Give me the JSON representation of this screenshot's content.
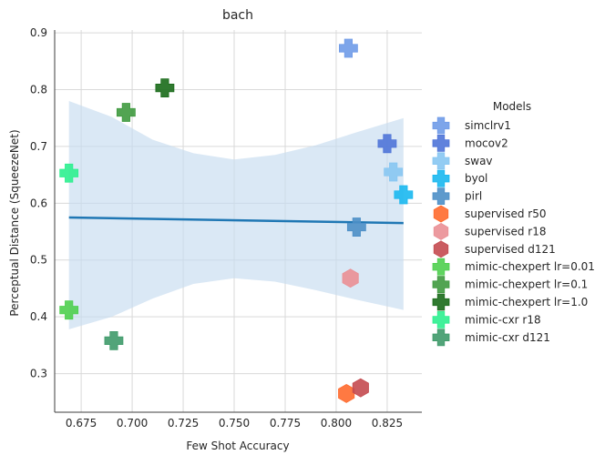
{
  "chart_data": {
    "type": "scatter",
    "title": "bach",
    "xlabel": "Few Shot Accuracy",
    "ylabel": "Perceptual Distance (SqueezeNet)",
    "xlim": [
      0.662,
      0.842
    ],
    "ylim": [
      0.232,
      0.905
    ],
    "xticks": [
      "0.675",
      "0.700",
      "0.725",
      "0.750",
      "0.775",
      "0.800",
      "0.825"
    ],
    "yticks": [
      "0.3",
      "0.4",
      "0.5",
      "0.6",
      "0.7",
      "0.8",
      "0.9"
    ],
    "grid": true,
    "legend": {
      "title": "Models",
      "placement": "right"
    },
    "regression": {
      "color": "#1f77b4",
      "band_color": "#c6dbef",
      "line": [
        [
          0.669,
          0.575
        ],
        [
          0.833,
          0.565
        ]
      ],
      "band_upper": [
        [
          0.669,
          0.78
        ],
        [
          0.69,
          0.752
        ],
        [
          0.71,
          0.712
        ],
        [
          0.73,
          0.688
        ],
        [
          0.75,
          0.677
        ],
        [
          0.77,
          0.685
        ],
        [
          0.79,
          0.702
        ],
        [
          0.81,
          0.725
        ],
        [
          0.833,
          0.75
        ]
      ],
      "band_lower": [
        [
          0.669,
          0.378
        ],
        [
          0.69,
          0.4
        ],
        [
          0.71,
          0.432
        ],
        [
          0.73,
          0.458
        ],
        [
          0.75,
          0.468
        ],
        [
          0.77,
          0.462
        ],
        [
          0.79,
          0.447
        ],
        [
          0.81,
          0.43
        ],
        [
          0.833,
          0.412
        ]
      ]
    },
    "series": [
      {
        "name": "simclrv1",
        "marker": "plus",
        "color": "#6f9be8",
        "points": [
          [
            0.806,
            0.873
          ]
        ]
      },
      {
        "name": "mocov2",
        "marker": "plus",
        "color": "#4f74d8",
        "points": [
          [
            0.825,
            0.705
          ]
        ]
      },
      {
        "name": "swav",
        "marker": "plus",
        "color": "#87c6f2",
        "points": [
          [
            0.828,
            0.655
          ]
        ]
      },
      {
        "name": "byol",
        "marker": "plus",
        "color": "#1ab8f0",
        "points": [
          [
            0.833,
            0.615
          ]
        ]
      },
      {
        "name": "pirl",
        "marker": "plus",
        "color": "#4d8fc7",
        "points": [
          [
            0.81,
            0.558
          ]
        ]
      },
      {
        "name": "supervised r50",
        "marker": "hexagon",
        "color": "#ff6a2e",
        "points": [
          [
            0.805,
            0.265
          ]
        ]
      },
      {
        "name": "supervised r18",
        "marker": "hexagon",
        "color": "#ea8f95",
        "points": [
          [
            0.807,
            0.468
          ]
        ]
      },
      {
        "name": "supervised d121",
        "marker": "hexagon",
        "color": "#c44a50",
        "points": [
          [
            0.812,
            0.275
          ]
        ]
      },
      {
        "name": "mimic-chexpert lr=0.01",
        "marker": "plus",
        "color": "#4fcf4f",
        "points": [
          [
            0.669,
            0.412
          ]
        ]
      },
      {
        "name": "mimic-chexpert lr=0.1",
        "marker": "plus",
        "color": "#3f9a3f",
        "points": [
          [
            0.697,
            0.76
          ]
        ]
      },
      {
        "name": "mimic-chexpert lr=1.0",
        "marker": "plus",
        "color": "#1a6b1a",
        "points": [
          [
            0.716,
            0.803
          ]
        ]
      },
      {
        "name": "mimic-cxr r18",
        "marker": "plus",
        "color": "#2cef8f",
        "points": [
          [
            0.669,
            0.653
          ]
        ]
      },
      {
        "name": "mimic-cxr d121",
        "marker": "plus",
        "color": "#3f9a6a",
        "points": [
          [
            0.691,
            0.358
          ]
        ]
      }
    ]
  }
}
